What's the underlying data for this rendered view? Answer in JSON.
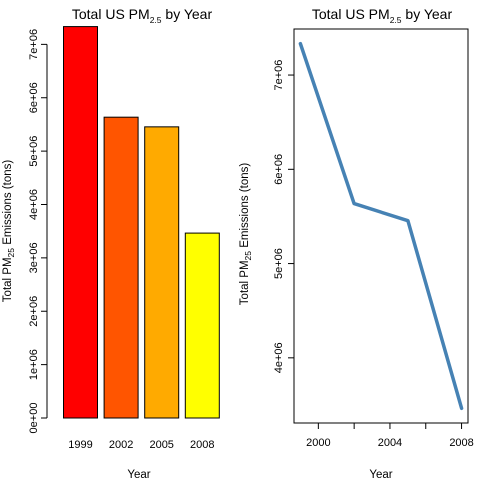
{
  "chart_data": [
    {
      "type": "bar",
      "title": {
        "prefix": "Total US  PM",
        "sub": "2.5",
        "suffix": "  by Year"
      },
      "xlabel": "Year",
      "ylabel": {
        "prefix": "Total PM",
        "sub": "25",
        "suffix": " Emissions (tons)"
      },
      "categories": [
        "1999",
        "2002",
        "2005",
        "2008"
      ],
      "values": [
        7332967,
        5635780,
        5454703,
        3464206
      ],
      "colors": [
        "#ff0000",
        "#ff5500",
        "#ffaa00",
        "#ffff00"
      ],
      "ylim": [
        0,
        7700000
      ],
      "yticks": [
        0,
        1000000,
        2000000,
        3000000,
        4000000,
        5000000,
        6000000,
        7000000
      ],
      "ytick_labels": [
        "0e+00",
        "1e+06",
        "2e+06",
        "3e+06",
        "4e+06",
        "5e+06",
        "6e+06",
        "7e+06"
      ],
      "grid": false
    },
    {
      "type": "line",
      "title": {
        "prefix": "Total US  PM",
        "sub": "2.5",
        "suffix": "  by Year"
      },
      "xlabel": "Year",
      "ylabel": {
        "prefix": "Total  PM",
        "sub": "25",
        "suffix": "  Emissions (tons)"
      },
      "x": [
        1999,
        2002,
        2005,
        2008
      ],
      "y": [
        7332967,
        5635780,
        5454703,
        3464206
      ],
      "color": "#4682b4",
      "xlim": [
        1998.64,
        2008.36
      ],
      "ylim": [
        3308660,
        7488513
      ],
      "xticks": [
        2000,
        2004,
        2008
      ],
      "xtick_labels": [
        "2000",
        "2004",
        "2008"
      ],
      "xticks_minor": [
        2002,
        2006
      ],
      "yticks": [
        4000000,
        5000000,
        6000000,
        7000000
      ],
      "ytick_labels": [
        "4e+06",
        "5e+06",
        "6e+06",
        "7e+06"
      ],
      "grid": false
    }
  ]
}
